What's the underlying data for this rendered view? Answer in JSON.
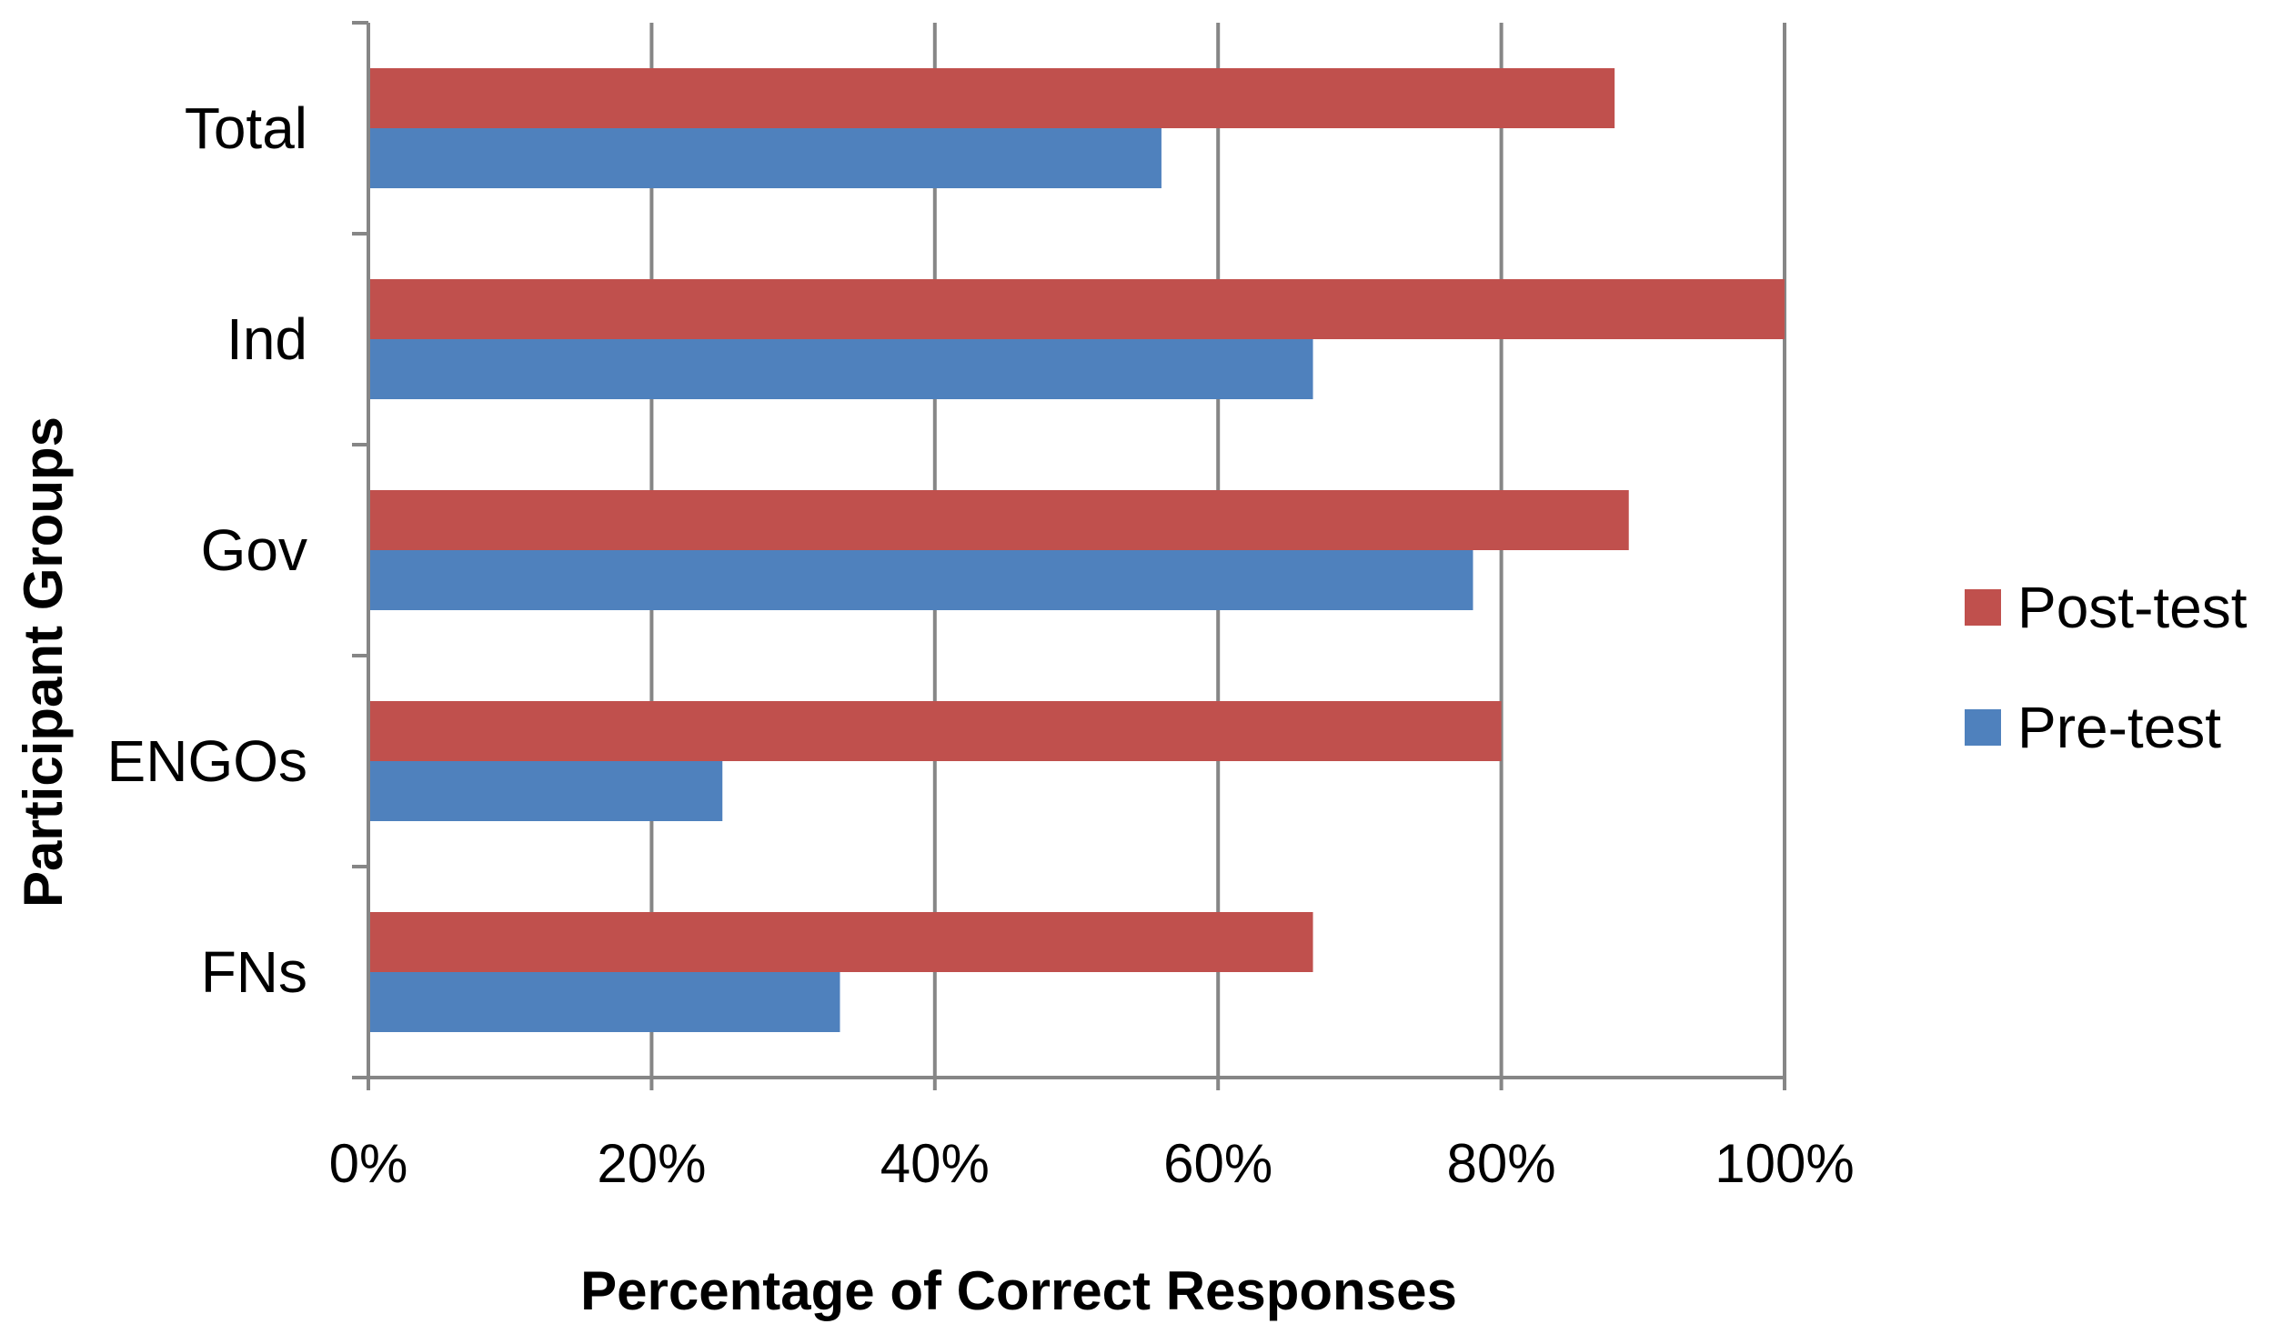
{
  "chart_data": {
    "type": "bar",
    "orientation": "horizontal",
    "categories": [
      "Total",
      "Ind",
      "Gov",
      "ENGOs",
      "FNs"
    ],
    "series": [
      {
        "name": "Post-test",
        "color": "#C0504D",
        "values": [
          88,
          100,
          89,
          80,
          66.7
        ]
      },
      {
        "name": "Pre-test",
        "color": "#4F81BD",
        "values": [
          56,
          66.7,
          78,
          25,
          33.3
        ]
      }
    ],
    "xlabel": "Percentage of Correct Responses",
    "ylabel": "Participant Groups",
    "xlim": [
      0,
      100
    ],
    "x_ticks": [
      "0%",
      "20%",
      "40%",
      "60%",
      "80%",
      "100%"
    ],
    "grid": "vertical",
    "legend_position": "right"
  }
}
